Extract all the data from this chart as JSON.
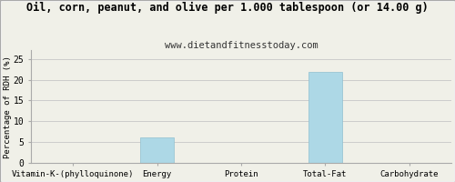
{
  "title": "Oil, corn, peanut, and olive per 1.000 tablespoon (or 14.00 g)",
  "subtitle": "www.dietandfitnesstoday.com",
  "categories": [
    "Vitamin-K-(phylloquinone)",
    "Energy",
    "Protein",
    "Total-Fat",
    "Carbohydrate"
  ],
  "values": [
    0,
    6.2,
    0,
    21.8,
    0
  ],
  "bar_color": "#add8e6",
  "ylabel": "Percentage of RDH (%)",
  "ylim": [
    0,
    27
  ],
  "yticks": [
    0,
    5,
    10,
    15,
    20,
    25
  ],
  "background_color": "#f0f0e8",
  "plot_bg_color": "#f0f0e8",
  "grid_color": "#cccccc",
  "border_color": "#aaaaaa",
  "title_fontsize": 8.5,
  "subtitle_fontsize": 7.5,
  "ylabel_fontsize": 6.5,
  "xlabel_fontsize": 6.5,
  "tick_fontsize": 7
}
